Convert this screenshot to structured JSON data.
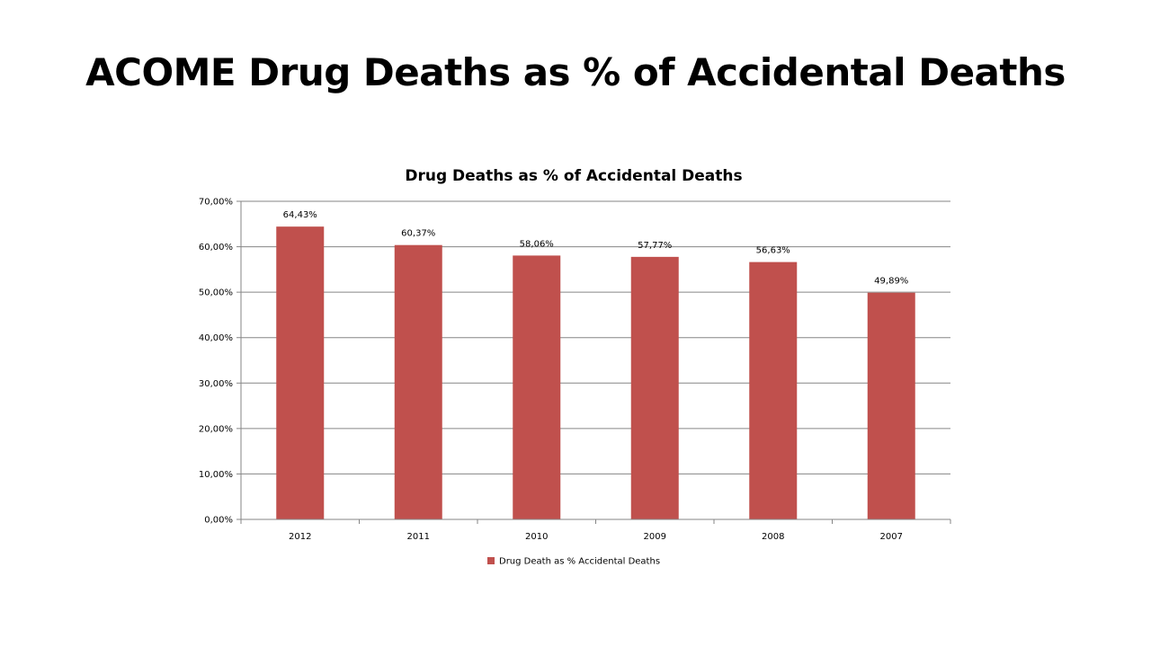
{
  "slide": {
    "title": "ACOME Drug Deaths as % of Accidental Deaths"
  },
  "chart_data": {
    "type": "bar",
    "title": "Drug Deaths as % of Accidental Deaths",
    "categories": [
      "2012",
      "2011",
      "2010",
      "2009",
      "2008",
      "2007"
    ],
    "series": [
      {
        "name": "Drug Death as % Accidental Deaths",
        "values": [
          64.43,
          60.37,
          58.06,
          57.77,
          56.63,
          49.89
        ],
        "data_labels": [
          "64,43%",
          "60,37%",
          "58,06%",
          "57,77%",
          "56,63%",
          "49,89%"
        ],
        "color": "#C0504D"
      }
    ],
    "ylim": [
      0,
      70
    ],
    "yticks": [
      0,
      10,
      20,
      30,
      40,
      50,
      60,
      70
    ],
    "ytick_labels": [
      "0,00%",
      "10,00%",
      "20,00%",
      "30,00%",
      "40,00%",
      "50,00%",
      "60,00%",
      "70,00%"
    ],
    "grid": true,
    "legend_position": "bottom",
    "xlabel": "",
    "ylabel": ""
  }
}
